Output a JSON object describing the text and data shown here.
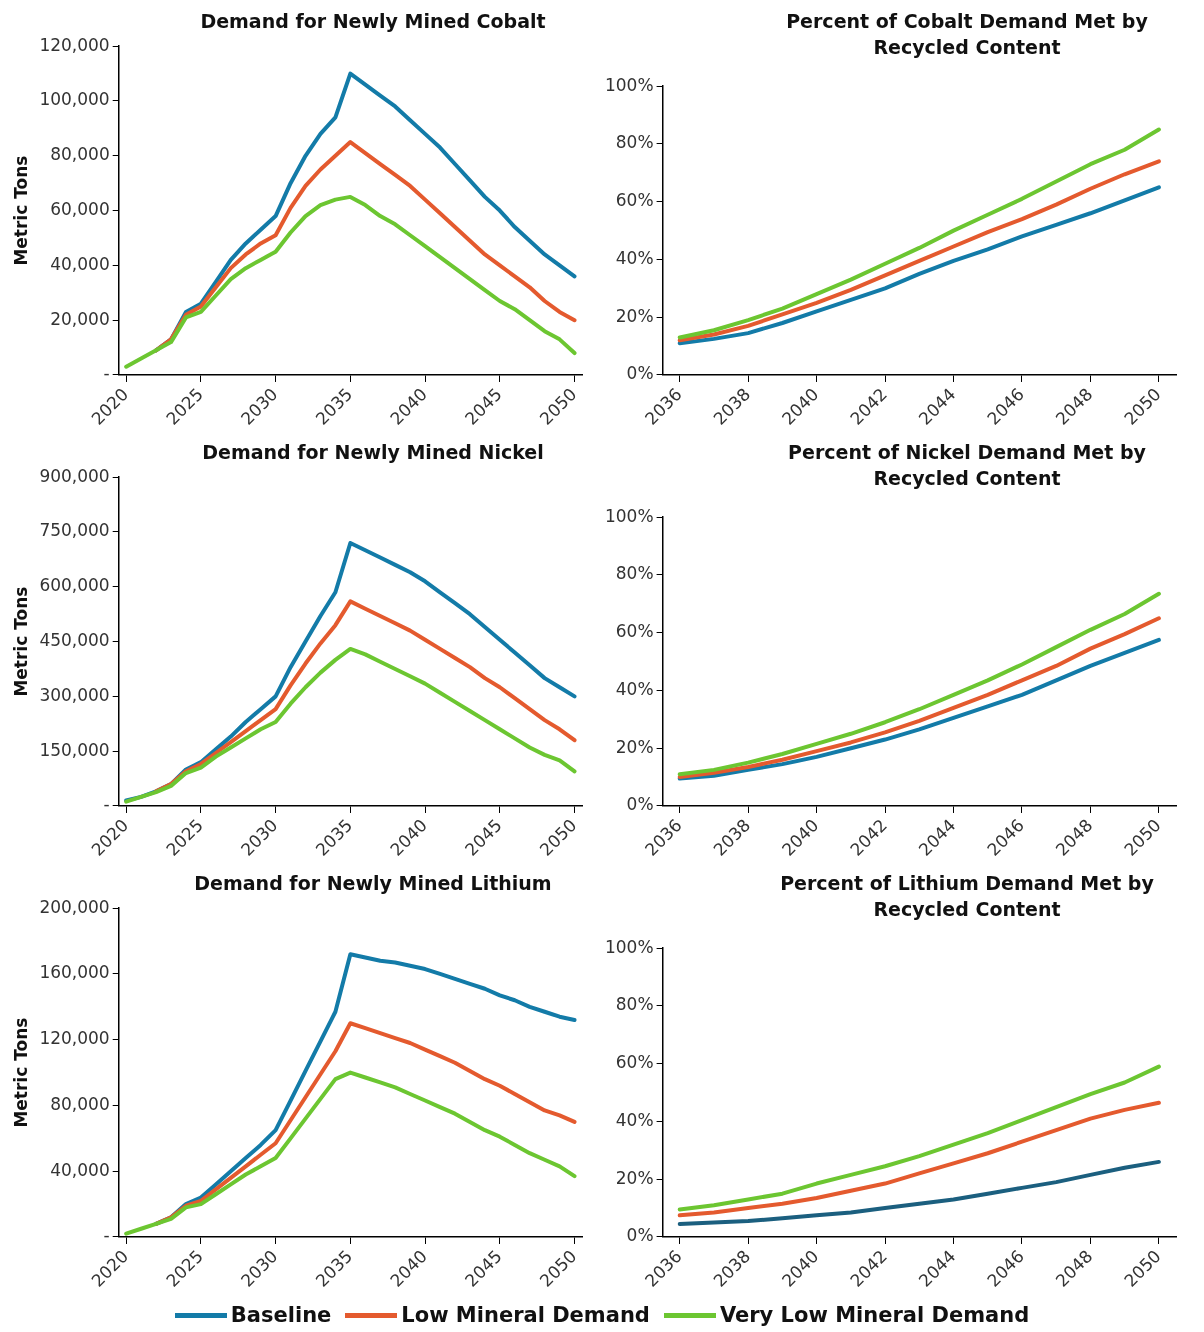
{
  "chart_data": [
    {
      "type": "line",
      "title": "Demand for Newly Mined Cobalt",
      "ylabel": "Metric Tons",
      "legend": "bottom",
      "categories": [
        "2020",
        null,
        null,
        null,
        null,
        "2025",
        null,
        null,
        null,
        null,
        "2030",
        null,
        null,
        null,
        null,
        "2035",
        null,
        null,
        null,
        null,
        "2040",
        null,
        null,
        null,
        null,
        "2045",
        null,
        null,
        null,
        null,
        "2050"
      ],
      "ylim": [
        0,
        120000
      ],
      "yticks": [
        {
          "value": 0,
          "label": "-"
        },
        {
          "value": 20000,
          "label": "20,000"
        },
        {
          "value": 40000,
          "label": "40,000"
        },
        {
          "value": 60000,
          "label": "60,000"
        },
        {
          "value": 80000,
          "label": "80,000"
        },
        {
          "value": 100000,
          "label": "100,000"
        },
        {
          "value": 120000,
          "label": "120,000"
        }
      ],
      "series": [
        {
          "name": "Baseline",
          "color": "#137ba8",
          "values": [
            null,
            null,
            9000,
            13000,
            23000,
            26000,
            34000,
            42000,
            48000,
            53000,
            58000,
            70000,
            80000,
            88000,
            94000,
            110000,
            106000,
            102000,
            98000,
            93000,
            88000,
            83000,
            77000,
            71000,
            65000,
            60000,
            54000,
            49000,
            44000,
            40000,
            36000
          ]
        },
        {
          "name": "Low Mineral Demand",
          "color": "#e45a2e",
          "values": [
            null,
            null,
            9000,
            13000,
            22000,
            25000,
            32000,
            39000,
            44000,
            48000,
            51000,
            61000,
            69000,
            75000,
            80000,
            85000,
            81000,
            77000,
            73000,
            69000,
            64000,
            59000,
            54000,
            49000,
            44000,
            40000,
            36000,
            32000,
            27000,
            23000,
            20000
          ]
        },
        {
          "name": "Very Low Mineral Demand",
          "color": "#6cc631",
          "values": [
            3000,
            6000,
            9000,
            12000,
            21000,
            23000,
            29000,
            35000,
            39000,
            42000,
            45000,
            52000,
            58000,
            62000,
            64000,
            65000,
            62000,
            58000,
            55000,
            51000,
            47000,
            43000,
            39000,
            35000,
            31000,
            27000,
            24000,
            20000,
            16000,
            13000,
            8000
          ]
        }
      ]
    },
    {
      "type": "line",
      "title": "Percent of Cobalt Demand Met by Recycled Content",
      "categories": [
        "2036",
        null,
        "2038",
        null,
        "2040",
        null,
        "2042",
        null,
        "2044",
        null,
        "2046",
        null,
        "2048",
        null,
        "2050"
      ],
      "ylim": [
        0,
        100
      ],
      "yticks": [
        {
          "value": 0,
          "label": "0%"
        },
        {
          "value": 20,
          "label": "20%"
        },
        {
          "value": 40,
          "label": "40%"
        },
        {
          "value": 60,
          "label": "60%"
        },
        {
          "value": 80,
          "label": "80%"
        },
        {
          "value": 100,
          "label": "100%"
        }
      ],
      "series": [
        {
          "color": "#137ba8",
          "values": [
            11,
            12.5,
            14.5,
            18,
            22,
            26,
            30,
            35,
            39.5,
            43.5,
            48,
            52,
            56,
            60.5,
            65
          ]
        },
        {
          "color": "#e45a2e",
          "values": [
            12,
            14,
            17,
            21,
            25,
            29.5,
            34.5,
            39.5,
            44.5,
            49.5,
            54,
            59,
            64.5,
            69.5,
            74
          ]
        },
        {
          "color": "#6cc631",
          "values": [
            13,
            15.5,
            19,
            23,
            28,
            33,
            38.5,
            44,
            50,
            55.5,
            61,
            67,
            73,
            78,
            85
          ]
        }
      ]
    },
    {
      "type": "line",
      "title": "Demand for Newly Mined Nickel",
      "ylabel": "Metric Tons",
      "categories": [
        "2020",
        null,
        null,
        null,
        null,
        "2025",
        null,
        null,
        null,
        null,
        "2030",
        null,
        null,
        null,
        null,
        "2035",
        null,
        null,
        null,
        null,
        "2040",
        null,
        null,
        null,
        null,
        "2045",
        null,
        null,
        null,
        null,
        "2050"
      ],
      "ylim": [
        0,
        900000
      ],
      "yticks": [
        {
          "value": 0,
          "label": "-"
        },
        {
          "value": 150000,
          "label": "150,000"
        },
        {
          "value": 300000,
          "label": "300,000"
        },
        {
          "value": 450000,
          "label": "450,000"
        },
        {
          "value": 600000,
          "label": "600,000"
        },
        {
          "value": 750000,
          "label": "750,000"
        },
        {
          "value": 900000,
          "label": "900,000"
        }
      ],
      "series": [
        {
          "color": "#137ba8",
          "values": [
            15000,
            25000,
            40000,
            60000,
            100000,
            120000,
            155000,
            190000,
            230000,
            265000,
            300000,
            380000,
            450000,
            520000,
            585000,
            720000,
            700000,
            680000,
            660000,
            640000,
            615000,
            585000,
            555000,
            525000,
            490000,
            455000,
            420000,
            385000,
            350000,
            325000,
            300000
          ]
        },
        {
          "color": "#e45a2e",
          "values": [
            null,
            null,
            40000,
            60000,
            95000,
            115000,
            145000,
            175000,
            205000,
            235000,
            265000,
            330000,
            390000,
            445000,
            495000,
            560000,
            540000,
            520000,
            500000,
            480000,
            455000,
            430000,
            405000,
            380000,
            350000,
            325000,
            295000,
            265000,
            235000,
            210000,
            180000
          ]
        },
        {
          "color": "#6cc631",
          "values": [
            12000,
            25000,
            38000,
            55000,
            90000,
            105000,
            135000,
            160000,
            185000,
            210000,
            230000,
            280000,
            325000,
            365000,
            400000,
            430000,
            415000,
            395000,
            375000,
            355000,
            335000,
            310000,
            285000,
            260000,
            235000,
            210000,
            185000,
            160000,
            140000,
            125000,
            95000
          ]
        }
      ]
    },
    {
      "type": "line",
      "title": "Percent of Nickel Demand Met by Recycled Content",
      "categories": [
        "2036",
        null,
        "2038",
        null,
        "2040",
        null,
        "2042",
        null,
        "2044",
        null,
        "2046",
        null,
        "2048",
        null,
        "2050"
      ],
      "ylim": [
        0,
        100
      ],
      "yticks": [
        {
          "value": 0,
          "label": "0%"
        },
        {
          "value": 20,
          "label": "20%"
        },
        {
          "value": 40,
          "label": "40%"
        },
        {
          "value": 60,
          "label": "60%"
        },
        {
          "value": 80,
          "label": "80%"
        },
        {
          "value": 100,
          "label": "100%"
        }
      ],
      "series": [
        {
          "color": "#137ba8",
          "values": [
            9.5,
            10.5,
            12.5,
            14.5,
            17,
            20,
            23,
            26.5,
            30.5,
            34.5,
            38.5,
            43.5,
            48.5,
            53,
            57.5
          ]
        },
        {
          "color": "#e45a2e",
          "values": [
            10,
            11.5,
            13.5,
            16,
            19,
            22,
            25.5,
            29.5,
            34,
            38.5,
            43.5,
            48.5,
            54.5,
            59.5,
            65
          ]
        },
        {
          "color": "#6cc631",
          "values": [
            11,
            12.5,
            15,
            18,
            21.5,
            25,
            29,
            33.5,
            38.5,
            43.5,
            49,
            55,
            61,
            66.5,
            73.5
          ]
        }
      ]
    },
    {
      "type": "line",
      "title": "Demand for Newly Mined Lithium",
      "ylabel": "Metric Tons",
      "categories": [
        "2020",
        null,
        null,
        null,
        null,
        "2025",
        null,
        null,
        null,
        null,
        "2030",
        null,
        null,
        null,
        null,
        "2035",
        null,
        null,
        null,
        null,
        "2040",
        null,
        null,
        null,
        null,
        "2045",
        null,
        null,
        null,
        null,
        "2050"
      ],
      "ylim": [
        0,
        200000
      ],
      "yticks": [
        {
          "value": 0,
          "label": "-"
        },
        {
          "value": 40000,
          "label": "40,000"
        },
        {
          "value": 80000,
          "label": "80,000"
        },
        {
          "value": 120000,
          "label": "120,000"
        },
        {
          "value": 160000,
          "label": "160,000"
        },
        {
          "value": 200000,
          "label": "200,000"
        }
      ],
      "series": [
        {
          "color": "#137ba8",
          "values": [
            null,
            null,
            8000,
            12000,
            20000,
            24000,
            32000,
            40000,
            48000,
            56000,
            65000,
            83000,
            101000,
            119000,
            137000,
            172000,
            170000,
            168000,
            167000,
            165000,
            163000,
            160000,
            157000,
            154000,
            151000,
            147000,
            144000,
            140000,
            137000,
            134000,
            132000
          ]
        },
        {
          "color": "#e45a2e",
          "values": [
            null,
            null,
            8000,
            12000,
            19000,
            22000,
            29000,
            36000,
            43000,
            50000,
            57000,
            71000,
            85000,
            99000,
            113000,
            130000,
            127000,
            124000,
            121000,
            118000,
            114000,
            110000,
            106000,
            101000,
            96000,
            92000,
            87000,
            82000,
            77000,
            74000,
            70000
          ]
        },
        {
          "color": "#6cc631",
          "values": [
            2000,
            5000,
            8000,
            11000,
            18000,
            20000,
            26000,
            32000,
            38000,
            43000,
            48000,
            60000,
            72000,
            84000,
            96000,
            100000,
            97000,
            94000,
            91000,
            87000,
            83000,
            79000,
            75000,
            70000,
            65000,
            61000,
            56000,
            51000,
            47000,
            43000,
            37000
          ]
        }
      ]
    },
    {
      "type": "line",
      "title": "Percent of Lithium Demand Met by Recycled Content",
      "categories": [
        "2036",
        null,
        "2038",
        null,
        "2040",
        null,
        "2042",
        null,
        "2044",
        null,
        "2046",
        null,
        "2048",
        null,
        "2050"
      ],
      "ylim": [
        0,
        100
      ],
      "yticks": [
        {
          "value": 0,
          "label": "0%"
        },
        {
          "value": 20,
          "label": "20%"
        },
        {
          "value": 40,
          "label": "40%"
        },
        {
          "value": 60,
          "label": "60%"
        },
        {
          "value": 80,
          "label": "80%"
        },
        {
          "value": 100,
          "label": "100%"
        }
      ],
      "series": [
        {
          "color": "#1b5f7f",
          "values": [
            4.5,
            5,
            5.5,
            6.5,
            7.5,
            8.5,
            10,
            11.5,
            13,
            15,
            17,
            19,
            21.5,
            24,
            26
          ]
        },
        {
          "color": "#e45a2e",
          "values": [
            7.5,
            8.5,
            10,
            11.5,
            13.5,
            16,
            18.5,
            22,
            25.5,
            29,
            33,
            37,
            41,
            44,
            46.5
          ]
        },
        {
          "color": "#6cc631",
          "values": [
            9.5,
            11,
            13,
            15,
            18.5,
            21.5,
            24.5,
            28,
            32,
            36,
            40.5,
            45,
            49.5,
            53.5,
            59
          ]
        }
      ]
    }
  ]
}
